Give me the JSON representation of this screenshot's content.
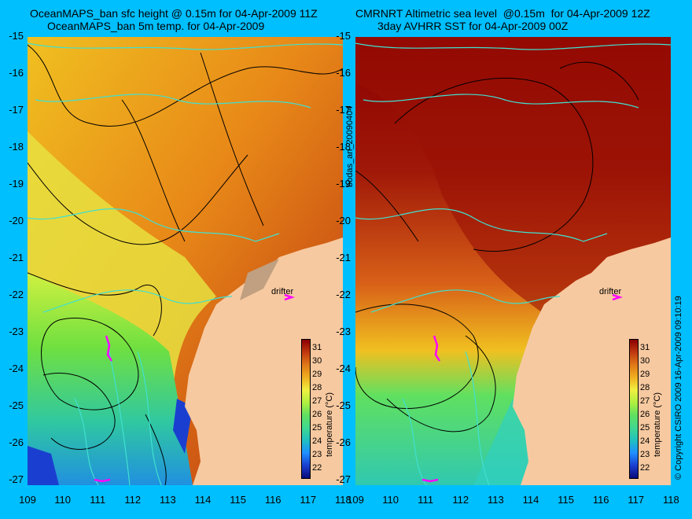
{
  "titles": {
    "left_line1": "OceanMAPS_ban sfc height @ 0.15m for 04-Apr-2009 11Z",
    "left_line2": "OceanMAPS_ban 5m temp. for 04-Apr-2009",
    "right_line1": "CMRNRT Altimetric sea level  @0.15m  for 04-Apr-2009 12Z",
    "right_line2": "3day AVHRR SST for 04-Apr-2009 00Z"
  },
  "lat_labels": [
    "-15",
    "-16",
    "-17",
    "-18",
    "-19",
    "-20",
    "-21",
    "-22",
    "-23",
    "-24",
    "-25",
    "-26",
    "-27"
  ],
  "lon_labels_left": [
    "109",
    "110",
    "111",
    "112",
    "113",
    "114",
    "115",
    "116",
    "117",
    "118"
  ],
  "lon_labels_right": [
    "109",
    "110",
    "111",
    "112",
    "113",
    "114",
    "115",
    "116",
    "117",
    "118"
  ],
  "colorbar": {
    "ticks": [
      "31",
      "30",
      "29",
      "28",
      "27",
      "26",
      "25",
      "24",
      "23",
      "22"
    ],
    "label": "temperature (°C)",
    "colors": [
      "#0a0a7a",
      "#1a3fd0",
      "#1e90ff",
      "#20c0c0",
      "#40d890",
      "#60e060",
      "#b0f040",
      "#f0f040",
      "#f0b020",
      "#e07818",
      "#c03810",
      "#8b0000"
    ]
  },
  "drifter_label": "drifter",
  "side_text": "bodas_an_20090404",
  "copyright": "© Copyright CSIRO 2009   16-Apr-2009 09:10:19",
  "colors": {
    "background": "#00bfff",
    "land": "#f7c9a0",
    "contour": "#000000",
    "coast": "#40e0d0",
    "drifter": "#ff00ff"
  }
}
